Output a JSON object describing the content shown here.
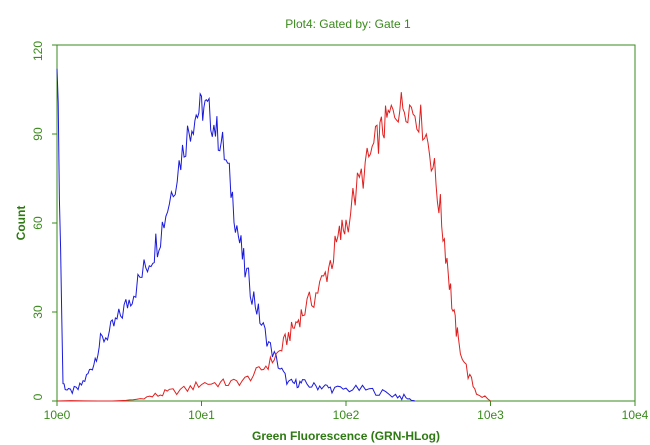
{
  "chart_data": {
    "type": "line",
    "title": "Plot4:  Gated by: Gate 1",
    "xlabel": "Green Fluorescence (GRN-HLog)",
    "ylabel": "Count",
    "x_scale": "log",
    "xlim": [
      1,
      10000
    ],
    "ylim": [
      0,
      120
    ],
    "x_ticks": [
      1,
      10,
      100,
      1000,
      10000
    ],
    "x_tick_labels": [
      "10e0",
      "10e1",
      "10e2",
      "10e3",
      "10e4"
    ],
    "y_ticks": [
      0,
      30,
      60,
      90,
      120
    ],
    "y_tick_labels": [
      "0",
      "30",
      "60",
      "90",
      "120"
    ],
    "grid": false,
    "legend": "none",
    "colors": {
      "frame": "#3a8a1c",
      "text": "#3a8a1c",
      "series_blue": "#1a1adc",
      "series_red": "#e02020"
    },
    "series": [
      {
        "color": "#1a1adc",
        "x": [
          1.0,
          1.1,
          1.2,
          1.4,
          1.6,
          1.8,
          2.0,
          2.3,
          2.6,
          3.0,
          3.4,
          4.0,
          4.6,
          5.2,
          6.0,
          7.0,
          8.0,
          9.0,
          10.0,
          11.0,
          12.5,
          14.0,
          16.0,
          18.0,
          20.0,
          23.0,
          26.0,
          30.0,
          35.0,
          40.0,
          45.0,
          50.0,
          60.0,
          70.0,
          80.0,
          100.0,
          130.0,
          170.0,
          220.0,
          260.0,
          300.0
        ],
        "y": [
          118,
          6,
          3,
          4,
          8,
          13,
          20,
          23,
          27,
          32,
          37,
          44,
          50,
          57,
          68,
          80,
          90,
          96,
          99,
          98,
          92,
          86,
          72,
          56,
          44,
          35,
          26,
          18,
          11,
          6,
          6,
          6,
          5,
          5,
          4,
          4,
          4,
          3,
          2,
          1,
          0
        ]
      },
      {
        "color": "#e02020",
        "x": [
          1.0,
          3.0,
          4.0,
          5.0,
          6.0,
          8.0,
          10.0,
          13.0,
          16.0,
          20.0,
          25.0,
          30.0,
          35.0,
          40.0,
          45.0,
          50.0,
          60.0,
          70.0,
          80.0,
          90.0,
          100.0,
          120.0,
          140.0,
          160.0,
          180.0,
          200.0,
          230.0,
          260.0,
          300.0,
          350.0,
          400.0,
          450.0,
          500.0,
          550.0,
          600.0,
          700.0,
          800.0,
          1000.0
        ],
        "y": [
          0,
          0,
          1,
          2,
          3,
          4,
          6,
          6,
          6,
          7,
          10,
          13,
          17,
          22,
          26,
          30,
          35,
          41,
          48,
          55,
          60,
          72,
          80,
          87,
          92,
          96,
          99,
          100,
          98,
          92,
          80,
          64,
          48,
          30,
          20,
          9,
          3,
          0
        ]
      }
    ]
  }
}
